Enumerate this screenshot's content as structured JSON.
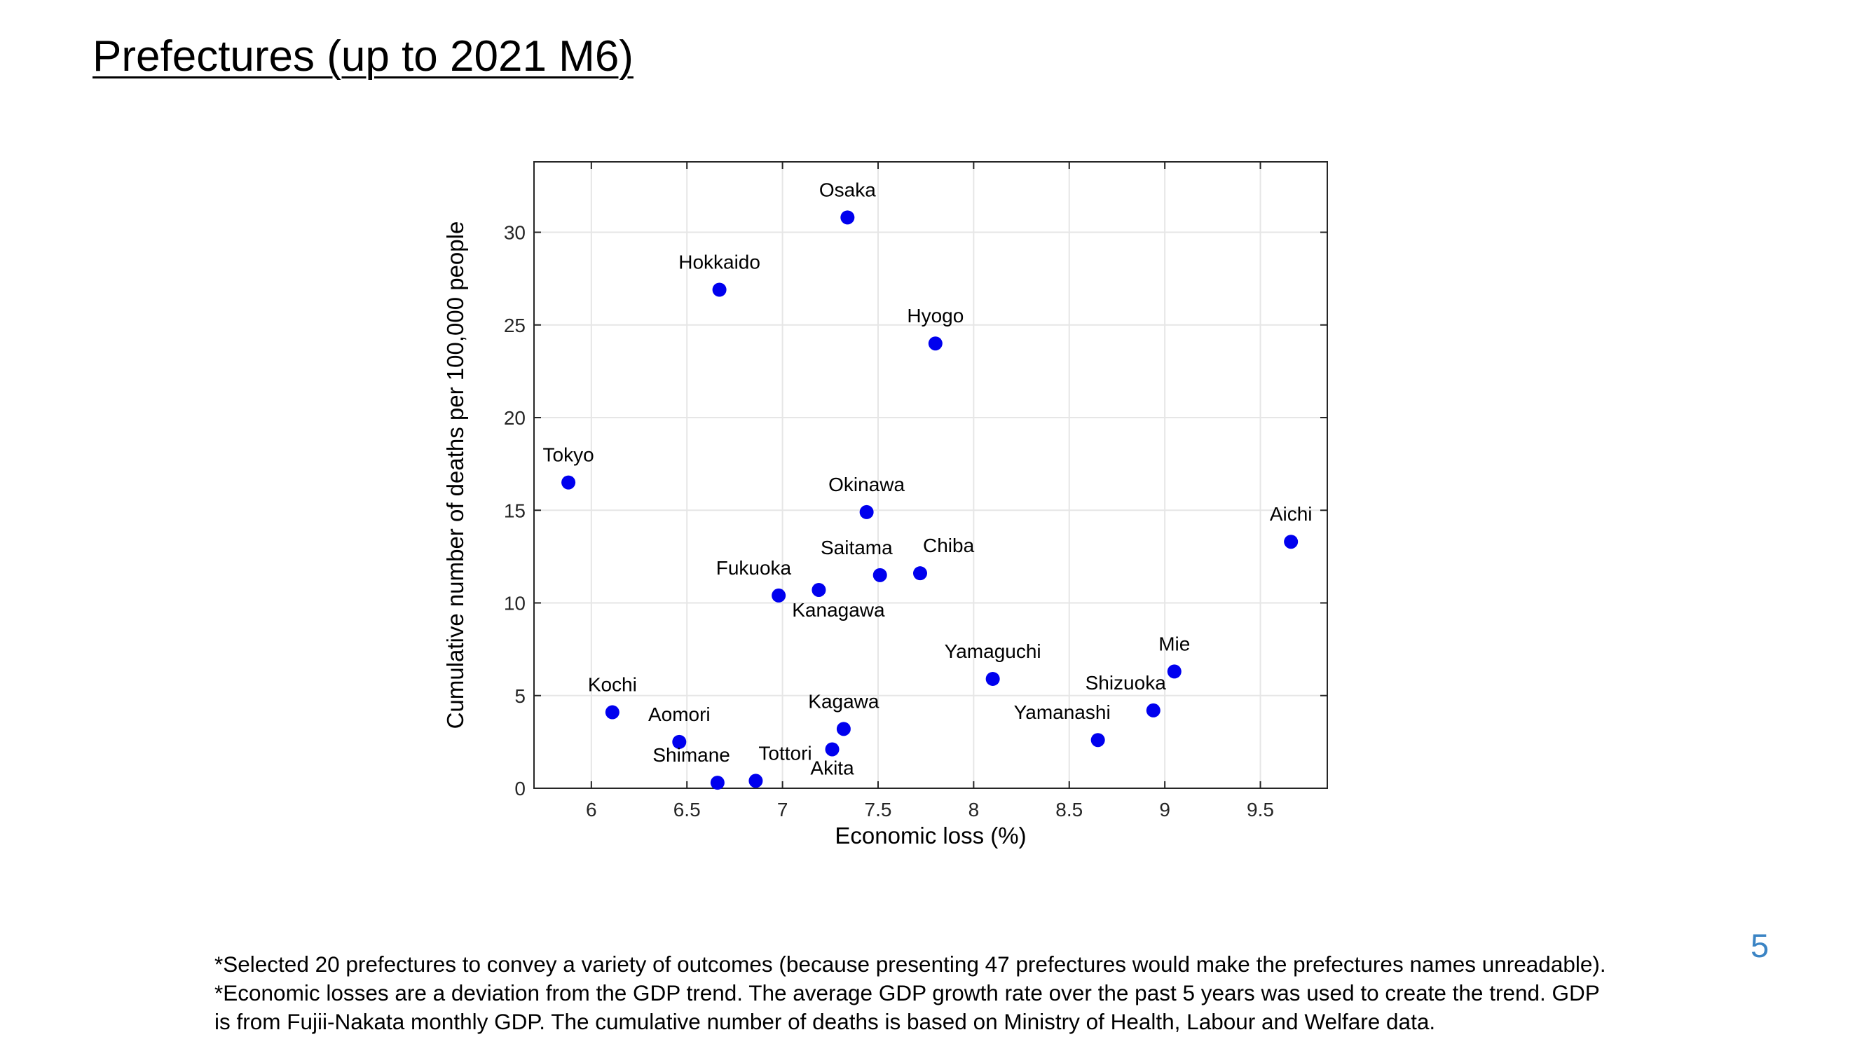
{
  "slide": {
    "title": "Prefectures (up to 2021 M6)",
    "page_number": "5",
    "notes": [
      "*Selected 20 prefectures to convey a variety of outcomes (because presenting 47 prefectures would make the prefectures names unreadable).",
      "*Economic losses are a deviation from the GDP trend. The average GDP growth rate over the past 5 years was used to create the trend. GDP",
      "is from Fujii-Nakata monthly GDP. The cumulative number of deaths is based on Ministry of Health, Labour and Welfare data."
    ]
  },
  "chart_data": {
    "type": "scatter",
    "xlabel": "Economic loss (%)",
    "ylabel": "Cumulative number of deaths per 100,000 people",
    "xlim": [
      5.7,
      9.85
    ],
    "ylim": [
      0,
      33.8
    ],
    "xticks": [
      6,
      6.5,
      7,
      7.5,
      8,
      8.5,
      9,
      9.5
    ],
    "xtick_labels": [
      "6",
      "6.5",
      "7",
      "7.5",
      "8",
      "8.5",
      "9",
      "9.5"
    ],
    "yticks": [
      0,
      5,
      10,
      15,
      20,
      25,
      30
    ],
    "ytick_labels": [
      "0",
      "5",
      "10",
      "15",
      "20",
      "25",
      "30"
    ],
    "grid": true,
    "marker_color": "#0000ee",
    "points": [
      {
        "label": "Osaka",
        "x": 7.34,
        "y": 30.8,
        "label_pos": "above"
      },
      {
        "label": "Hokkaido",
        "x": 6.67,
        "y": 26.9,
        "label_pos": "above"
      },
      {
        "label": "Hyogo",
        "x": 7.8,
        "y": 24.0,
        "label_pos": "above"
      },
      {
        "label": "Tokyo",
        "x": 5.88,
        "y": 16.5,
        "label_pos": "above"
      },
      {
        "label": "Okinawa",
        "x": 7.44,
        "y": 14.9,
        "label_pos": "above"
      },
      {
        "label": "Aichi",
        "x": 9.66,
        "y": 13.3,
        "label_pos": "above"
      },
      {
        "label": "Saitama",
        "x": 7.51,
        "y": 11.5,
        "label_pos": "above-left"
      },
      {
        "label": "Chiba",
        "x": 7.72,
        "y": 11.6,
        "label_pos": "above-right"
      },
      {
        "label": "Fukuoka",
        "x": 6.98,
        "y": 10.4,
        "label_pos": "above-left"
      },
      {
        "label": "Kanagawa",
        "x": 7.19,
        "y": 10.7,
        "label_pos": "below-right"
      },
      {
        "label": "Yamaguchi",
        "x": 8.1,
        "y": 5.9,
        "label_pos": "above"
      },
      {
        "label": "Mie",
        "x": 9.05,
        "y": 6.3,
        "label_pos": "above"
      },
      {
        "label": "Shizuoka",
        "x": 8.94,
        "y": 4.2,
        "label_pos": "above-left"
      },
      {
        "label": "Yamanashi",
        "x": 8.65,
        "y": 2.6,
        "label_pos": "above-left"
      },
      {
        "label": "Kochi",
        "x": 6.11,
        "y": 4.1,
        "label_pos": "above"
      },
      {
        "label": "Aomori",
        "x": 6.46,
        "y": 2.5,
        "label_pos": "above"
      },
      {
        "label": "Kagawa",
        "x": 7.32,
        "y": 3.2,
        "label_pos": "above"
      },
      {
        "label": "Akita",
        "x": 7.26,
        "y": 2.1,
        "label_pos": "below"
      },
      {
        "label": "Shimane",
        "x": 6.66,
        "y": 0.3,
        "label_pos": "above-left"
      },
      {
        "label": "Tottori",
        "x": 6.86,
        "y": 0.4,
        "label_pos": "above-right"
      }
    ]
  }
}
